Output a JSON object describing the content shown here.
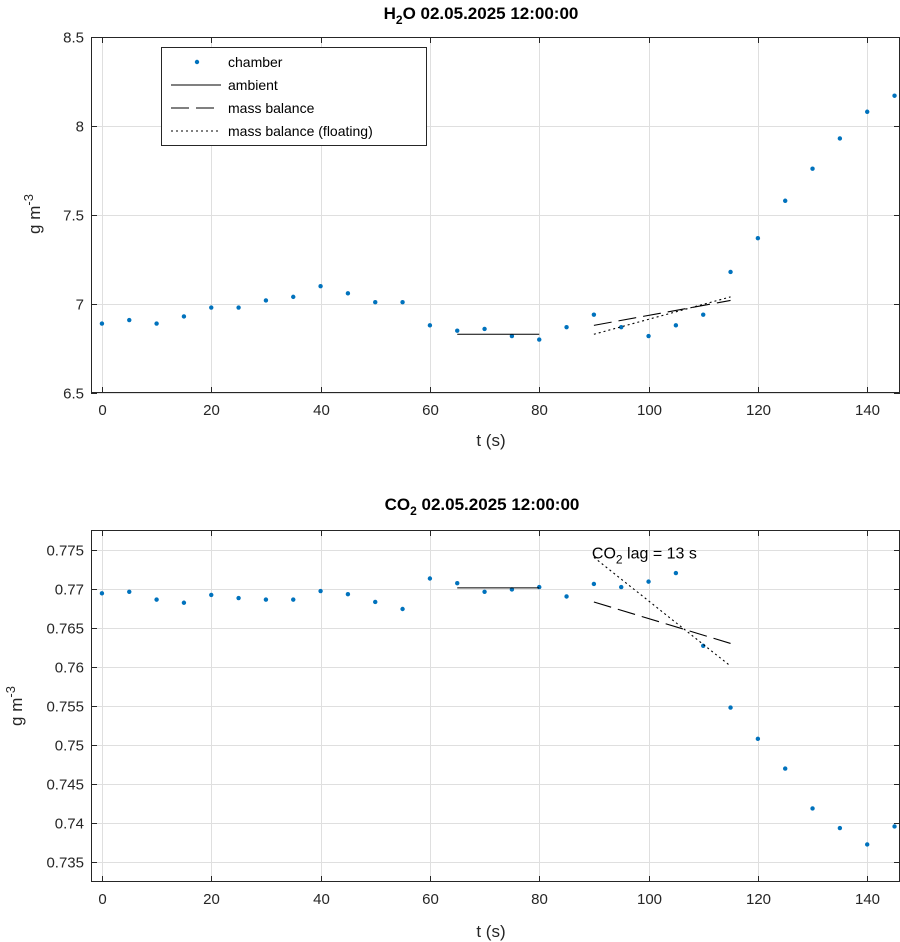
{
  "chart_data": [
    {
      "type": "scatter",
      "title": {
        "main": "H",
        "sub": "2",
        "rest": "O  02.05.2025 12:00:00"
      },
      "xlabel": "t (s)",
      "ylabel": {
        "main": "g m",
        "sup": "-3"
      },
      "xlim": [
        -2,
        146
      ],
      "ylim": [
        6.5,
        8.5
      ],
      "xticks": [
        0,
        20,
        40,
        60,
        80,
        100,
        120,
        140
      ],
      "yticks": [
        6.5,
        7,
        7.5,
        8,
        8.5
      ],
      "ytick_labels": [
        "6.5",
        "7",
        "7.5",
        "8",
        "8.5"
      ],
      "grid": true,
      "legend": {
        "position": "top-left",
        "entries": [
          "chamber",
          "ambient",
          "mass balance",
          "mass balance (floating)"
        ]
      },
      "series": [
        {
          "name": "chamber",
          "style": "points",
          "color": "#0072BD",
          "x": [
            0,
            5,
            10,
            15,
            20,
            25,
            30,
            35,
            40,
            45,
            50,
            55,
            60,
            65,
            70,
            75,
            80,
            85,
            90,
            95,
            100,
            105,
            110,
            115,
            120,
            125,
            130,
            135,
            140,
            145
          ],
          "y": [
            6.89,
            6.91,
            6.89,
            6.93,
            6.98,
            6.98,
            7.02,
            7.04,
            7.1,
            7.06,
            7.01,
            7.01,
            6.88,
            6.85,
            6.86,
            6.82,
            6.8,
            6.87,
            6.94,
            6.87,
            6.82,
            6.88,
            6.94,
            7.18,
            7.37,
            7.58,
            7.76,
            7.93,
            8.08,
            8.17
          ]
        },
        {
          "name": "ambient",
          "style": "solid",
          "x": [
            65,
            80
          ],
          "y": [
            6.83,
            6.83
          ]
        },
        {
          "name": "mass balance",
          "style": "dashed",
          "x": [
            90,
            115
          ],
          "y": [
            6.88,
            7.02
          ]
        },
        {
          "name": "mass balance (floating)",
          "style": "dotted",
          "x": [
            90,
            115
          ],
          "y": [
            6.83,
            7.04
          ]
        }
      ]
    },
    {
      "type": "scatter",
      "title": {
        "main": "CO",
        "sub": "2",
        "rest": "  02.05.2025 12:00:00"
      },
      "xlabel": "t (s)",
      "ylabel": {
        "main": "g m",
        "sup": "-3"
      },
      "xlim": [
        -2,
        146
      ],
      "ylim": [
        0.7325,
        0.7775
      ],
      "xticks": [
        0,
        20,
        40,
        60,
        80,
        100,
        120,
        140
      ],
      "yticks": [
        0.735,
        0.74,
        0.745,
        0.75,
        0.755,
        0.76,
        0.765,
        0.77,
        0.775
      ],
      "ytick_labels": [
        "0.735",
        "0.74",
        "0.745",
        "0.75",
        "0.755",
        "0.76",
        "0.765",
        "0.77",
        "0.775"
      ],
      "grid": true,
      "annotation": {
        "main": "CO",
        "sub": "2",
        "rest": "  lag = 13 s",
        "x": 90,
        "y": 0.7745
      },
      "series": [
        {
          "name": "chamber",
          "style": "points",
          "color": "#0072BD",
          "x": [
            0,
            5,
            10,
            15,
            20,
            25,
            30,
            35,
            40,
            45,
            50,
            55,
            60,
            65,
            70,
            75,
            80,
            85,
            90,
            95,
            100,
            105,
            110,
            115,
            120,
            125,
            130,
            135,
            140,
            145
          ],
          "y": [
            0.7694,
            0.7696,
            0.7686,
            0.7682,
            0.7692,
            0.7688,
            0.7686,
            0.7686,
            0.7697,
            0.7693,
            0.7683,
            0.7674,
            0.7713,
            0.7707,
            0.7696,
            0.7699,
            0.7702,
            0.769,
            0.7706,
            0.7702,
            0.7709,
            0.772,
            0.7627,
            0.7548,
            0.7508,
            0.747,
            0.7419,
            0.7394,
            0.7373,
            0.7396
          ]
        },
        {
          "name": "ambient",
          "style": "solid",
          "x": [
            65,
            80
          ],
          "y": [
            0.7701,
            0.7701
          ]
        },
        {
          "name": "mass balance",
          "style": "dashed",
          "x": [
            90,
            115
          ],
          "y": [
            0.7683,
            0.763
          ]
        },
        {
          "name": "mass balance (floating)",
          "style": "dotted",
          "x": [
            90,
            115
          ],
          "y": [
            0.774,
            0.7601
          ]
        }
      ]
    }
  ]
}
